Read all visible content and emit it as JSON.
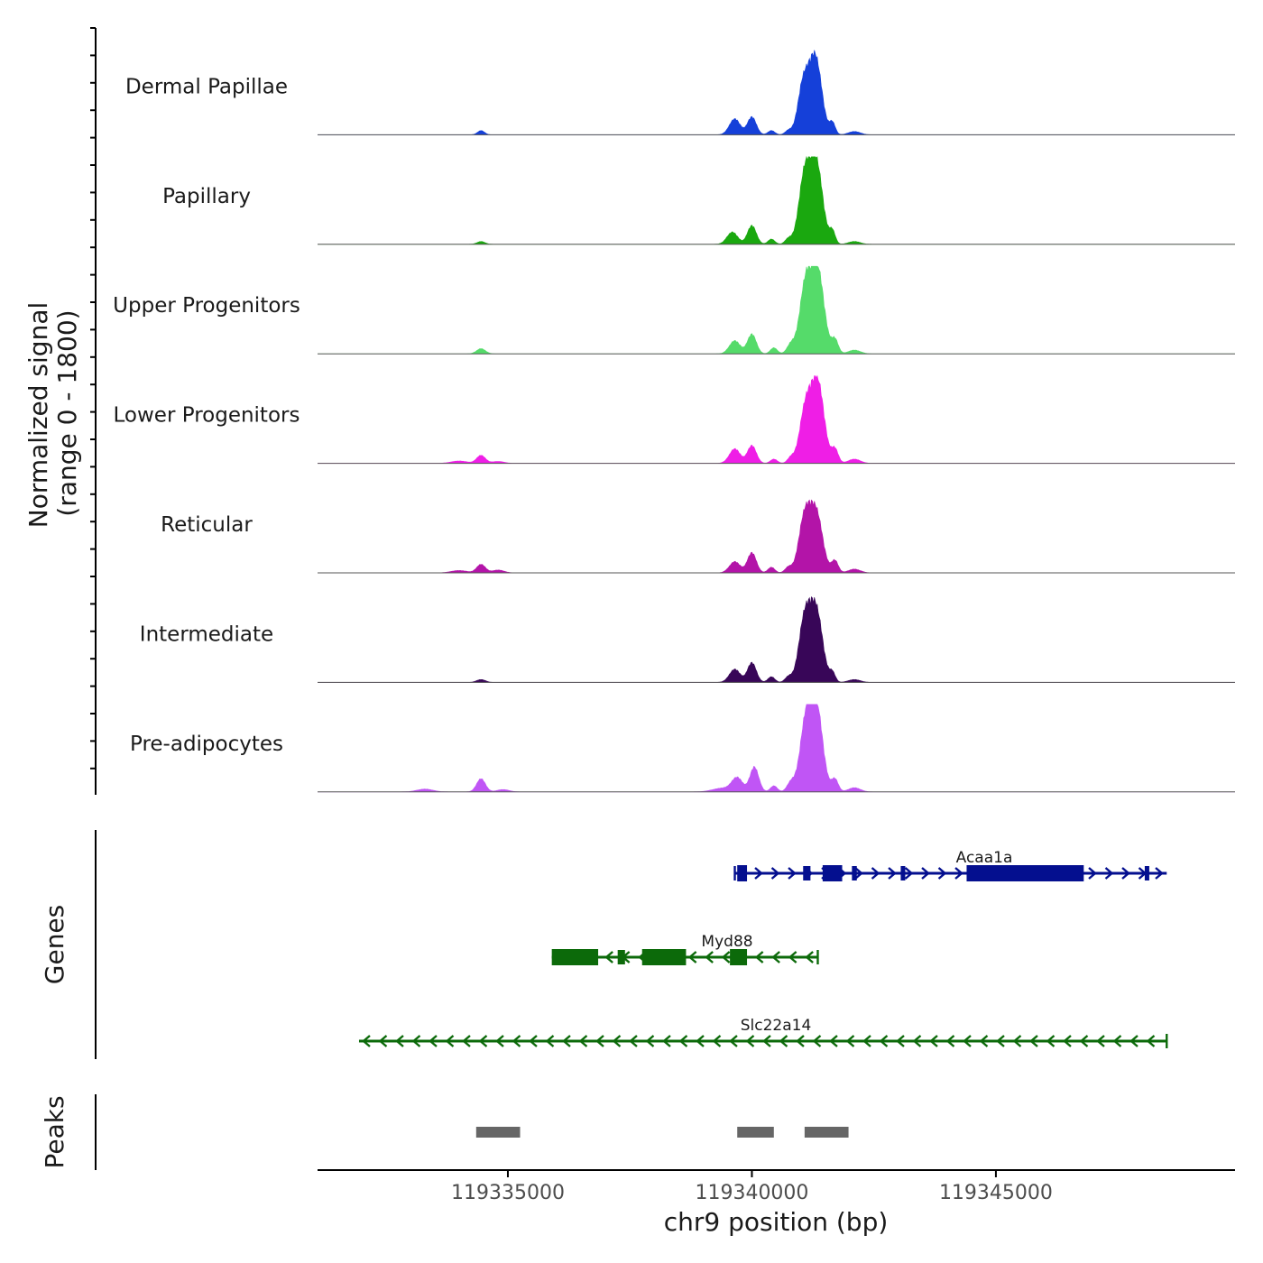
{
  "chart_data": {
    "type": "area",
    "chromosome": "chr9",
    "x_range": [
      119331100,
      119349900
    ],
    "y_axis_title": "Normalized signal",
    "y_axis_subtitle": "(range 0 - 1800)",
    "y_range": [
      0,
      1800
    ],
    "x_axis_title": "chr9 position (bp)",
    "x_ticks": [
      {
        "value": 119335000,
        "label": "119335000"
      },
      {
        "value": 119340000,
        "label": "119340000"
      },
      {
        "value": 119345000,
        "label": "119345000"
      }
    ],
    "tracks": [
      {
        "name": "Dermal Papillae",
        "color": "#1540d9",
        "peaks": [
          [
            119334450,
            90,
            70
          ],
          [
            119339650,
            340,
            110
          ],
          [
            119340000,
            380,
            90
          ],
          [
            119340400,
            90,
            70
          ],
          [
            119340750,
            90,
            70
          ],
          [
            119341050,
            1020,
            110
          ],
          [
            119341300,
            1650,
            130
          ],
          [
            119341650,
            250,
            60
          ],
          [
            119342100,
            70,
            120
          ]
        ]
      },
      {
        "name": "Papillary",
        "color": "#1aa80f",
        "peaks": [
          [
            119334450,
            60,
            80
          ],
          [
            119339600,
            260,
            110
          ],
          [
            119340000,
            400,
            90
          ],
          [
            119340400,
            110,
            70
          ],
          [
            119340750,
            120,
            70
          ],
          [
            119341080,
            1400,
            120
          ],
          [
            119341320,
            1700,
            130
          ],
          [
            119341650,
            270,
            60
          ],
          [
            119342100,
            60,
            120
          ]
        ]
      },
      {
        "name": "Upper Progenitors",
        "color": "#55db6a",
        "peaks": [
          [
            119334450,
            110,
            90
          ],
          [
            119339650,
            280,
            110
          ],
          [
            119340000,
            420,
            90
          ],
          [
            119340450,
            130,
            70
          ],
          [
            119340800,
            200,
            80
          ],
          [
            119341100,
            1450,
            120
          ],
          [
            119341350,
            1750,
            130
          ],
          [
            119341700,
            300,
            70
          ],
          [
            119342100,
            80,
            120
          ]
        ]
      },
      {
        "name": "Lower Progenitors",
        "color": "#ef1ee6",
        "peaks": [
          [
            119334000,
            50,
            160
          ],
          [
            119334450,
            170,
            90
          ],
          [
            119334800,
            40,
            120
          ],
          [
            119339650,
            310,
            110
          ],
          [
            119340000,
            380,
            90
          ],
          [
            119340450,
            90,
            70
          ],
          [
            119340800,
            120,
            70
          ],
          [
            119341100,
            1150,
            120
          ],
          [
            119341350,
            1700,
            130
          ],
          [
            119341700,
            300,
            70
          ],
          [
            119342100,
            90,
            120
          ]
        ]
      },
      {
        "name": "Reticular",
        "color": "#b314a8",
        "peaks": [
          [
            119334000,
            50,
            160
          ],
          [
            119334450,
            180,
            90
          ],
          [
            119334800,
            60,
            120
          ],
          [
            119339650,
            240,
            110
          ],
          [
            119340000,
            430,
            90
          ],
          [
            119340400,
            120,
            70
          ],
          [
            119340750,
            120,
            70
          ],
          [
            119341080,
            1150,
            120
          ],
          [
            119341320,
            1250,
            130
          ],
          [
            119341700,
            260,
            70
          ],
          [
            119342100,
            80,
            120
          ]
        ]
      },
      {
        "name": "Intermediate",
        "color": "#380658",
        "peaks": [
          [
            119334450,
            60,
            90
          ],
          [
            119339650,
            280,
            110
          ],
          [
            119340000,
            420,
            90
          ],
          [
            119340400,
            120,
            70
          ],
          [
            119340750,
            120,
            70
          ],
          [
            119341080,
            1300,
            120
          ],
          [
            119341320,
            1500,
            130
          ],
          [
            119341650,
            200,
            60
          ],
          [
            119342100,
            60,
            120
          ]
        ]
      },
      {
        "name": "Pre-adipocytes",
        "color": "#c055f5",
        "peaks": [
          [
            119333300,
            60,
            160
          ],
          [
            119334450,
            280,
            90
          ],
          [
            119334900,
            50,
            120
          ],
          [
            119339400,
            80,
            200
          ],
          [
            119339700,
            290,
            110
          ],
          [
            119340050,
            530,
            90
          ],
          [
            119340450,
            130,
            70
          ],
          [
            119340800,
            200,
            80
          ],
          [
            119341100,
            1350,
            120
          ],
          [
            119341320,
            1800,
            130
          ],
          [
            119341700,
            270,
            70
          ],
          [
            119342100,
            90,
            120
          ]
        ]
      }
    ],
    "genes_panel_title": "Genes",
    "genes": [
      {
        "name": "Acaa1a",
        "strand": "+",
        "start": 119339650,
        "end": 119348500,
        "color": "#040f8f",
        "exons": [
          [
            119339700,
            119339900,
            "thick"
          ],
          [
            119341050,
            119341200,
            "thin"
          ],
          [
            119341450,
            119341850,
            "thick"
          ],
          [
            119342050,
            119342150,
            "thin"
          ],
          [
            119343050,
            119343130,
            "thin"
          ],
          [
            119344400,
            119346800,
            "thick"
          ],
          [
            119348050,
            119348130,
            "thin"
          ]
        ]
      },
      {
        "name": "Myd88",
        "strand": "-",
        "start": 119335900,
        "end": 119341350,
        "color": "#0c6a0a",
        "exons": [
          [
            119335900,
            119336850,
            "thick"
          ],
          [
            119337250,
            119337400,
            "thin"
          ],
          [
            119337750,
            119338650,
            "thick"
          ],
          [
            119339550,
            119339900,
            "thick"
          ]
        ]
      },
      {
        "name": "Slc22a14",
        "strand": "-",
        "start": 119331950,
        "end": 119348500,
        "color": "#0c6a0a",
        "exons": []
      }
    ],
    "peaks_panel_title": "Peaks",
    "peak_regions": [
      [
        119334350,
        119335250
      ],
      [
        119339700,
        119340450
      ],
      [
        119341080,
        119341980
      ]
    ]
  }
}
